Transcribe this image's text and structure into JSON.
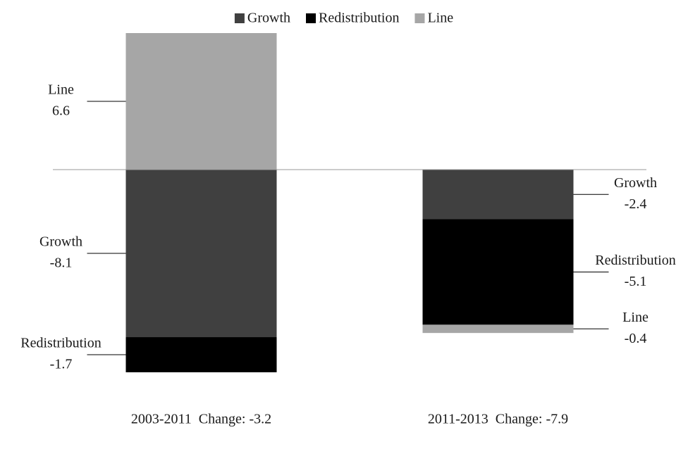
{
  "chart_data": {
    "type": "stacked-bar",
    "categories": [
      "2003-2011  Change: -3.2",
      "2011-2013  Change: -7.9"
    ],
    "series": [
      {
        "name": "Growth",
        "color": "#404040",
        "values": [
          -8.1,
          -2.4
        ]
      },
      {
        "name": "Redistribution",
        "color": "#000000",
        "values": [
          -1.7,
          -5.1
        ]
      },
      {
        "name": "Line",
        "color": "#a6a6a6",
        "values": [
          6.6,
          -0.4
        ]
      }
    ],
    "legend": "top",
    "baseline_color": "#999999"
  }
}
